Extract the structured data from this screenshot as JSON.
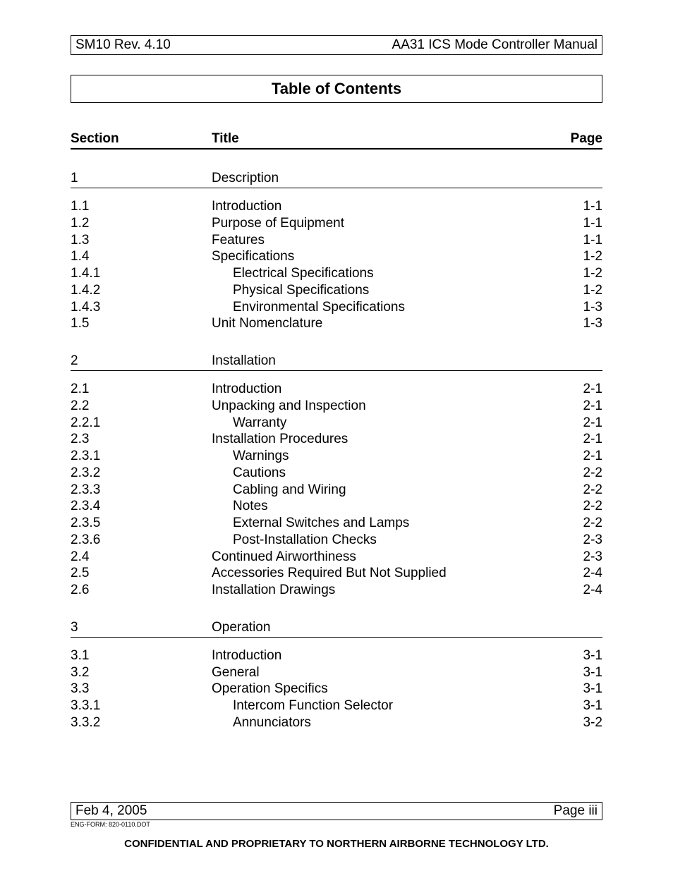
{
  "header": {
    "left": "SM10 Rev. 4.10",
    "right": "AA31 ICS Mode Controller Manual"
  },
  "title": "Table of Contents",
  "columns": {
    "section": "Section",
    "title": "Title",
    "page": "Page"
  },
  "sections": [
    {
      "num": "1",
      "name": "Description",
      "entries": [
        {
          "num": "1.1",
          "title": "Introduction",
          "page": "1-1",
          "indent": 1
        },
        {
          "num": "1.2",
          "title": "Purpose of Equipment",
          "page": "1-1",
          "indent": 1
        },
        {
          "num": "1.3",
          "title": "Features",
          "page": "1-1",
          "indent": 1
        },
        {
          "num": "1.4",
          "title": "Specifications",
          "page": "1-2",
          "indent": 1
        },
        {
          "num": "1.4.1",
          "title": "Electrical Specifications",
          "page": "1-2",
          "indent": 2
        },
        {
          "num": "1.4.2",
          "title": "Physical Specifications",
          "page": "1-2",
          "indent": 2
        },
        {
          "num": "1.4.3",
          "title": "Environmental Specifications",
          "page": "1-3",
          "indent": 2
        },
        {
          "num": "1.5",
          "title": "Unit Nomenclature",
          "page": "1-3",
          "indent": 1
        }
      ]
    },
    {
      "num": "2",
      "name": "Installation",
      "entries": [
        {
          "num": "2.1",
          "title": "Introduction",
          "page": "2-1",
          "indent": 1
        },
        {
          "num": "2.2",
          "title": "Unpacking and Inspection",
          "page": "2-1",
          "indent": 1
        },
        {
          "num": "2.2.1",
          "title": "Warranty",
          "page": "2-1",
          "indent": 2
        },
        {
          "num": "2.3",
          "title": "Installation Procedures",
          "page": "2-1",
          "indent": 1
        },
        {
          "num": "2.3.1",
          "title": "Warnings",
          "page": "2-1",
          "indent": 2
        },
        {
          "num": "2.3.2",
          "title": "Cautions",
          "page": "2-2",
          "indent": 2
        },
        {
          "num": "2.3.3",
          "title": "Cabling and Wiring",
          "page": "2-2",
          "indent": 2
        },
        {
          "num": "2.3.4",
          "title": "Notes",
          "page": "2-2",
          "indent": 2
        },
        {
          "num": "2.3.5",
          "title": "External Switches and Lamps",
          "page": "2-2",
          "indent": 2
        },
        {
          "num": "2.3.6",
          "title": "Post-Installation Checks",
          "page": "2-3",
          "indent": 2
        },
        {
          "num": "2.4",
          "title": "Continued Airworthiness",
          "page": "2-3",
          "indent": 1
        },
        {
          "num": "2.5",
          "title": "Accessories Required But Not Supplied",
          "page": "2-4",
          "indent": 1
        },
        {
          "num": "2.6",
          "title": "Installation Drawings",
          "page": "2-4",
          "indent": 1
        }
      ]
    },
    {
      "num": "3",
      "name": "Operation",
      "entries": [
        {
          "num": "3.1",
          "title": "Introduction",
          "page": "3-1",
          "indent": 1
        },
        {
          "num": "3.2",
          "title": "General",
          "page": "3-1",
          "indent": 1
        },
        {
          "num": "3.3",
          "title": "Operation Specifics",
          "page": "3-1",
          "indent": 1
        },
        {
          "num": "3.3.1",
          "title": "Intercom Function Selector",
          "page": "3-1",
          "indent": 2
        },
        {
          "num": "3.3.2",
          "title": "Annunciators",
          "page": "3-2",
          "indent": 2
        }
      ]
    }
  ],
  "footer": {
    "left": "Feb 4, 2005",
    "right": "Page iii",
    "eng_form": "ENG-FORM: 820-0110.DOT",
    "confidential": "CONFIDENTIAL AND PROPRIETARY TO NORTHERN AIRBORNE TECHNOLOGY LTD."
  }
}
